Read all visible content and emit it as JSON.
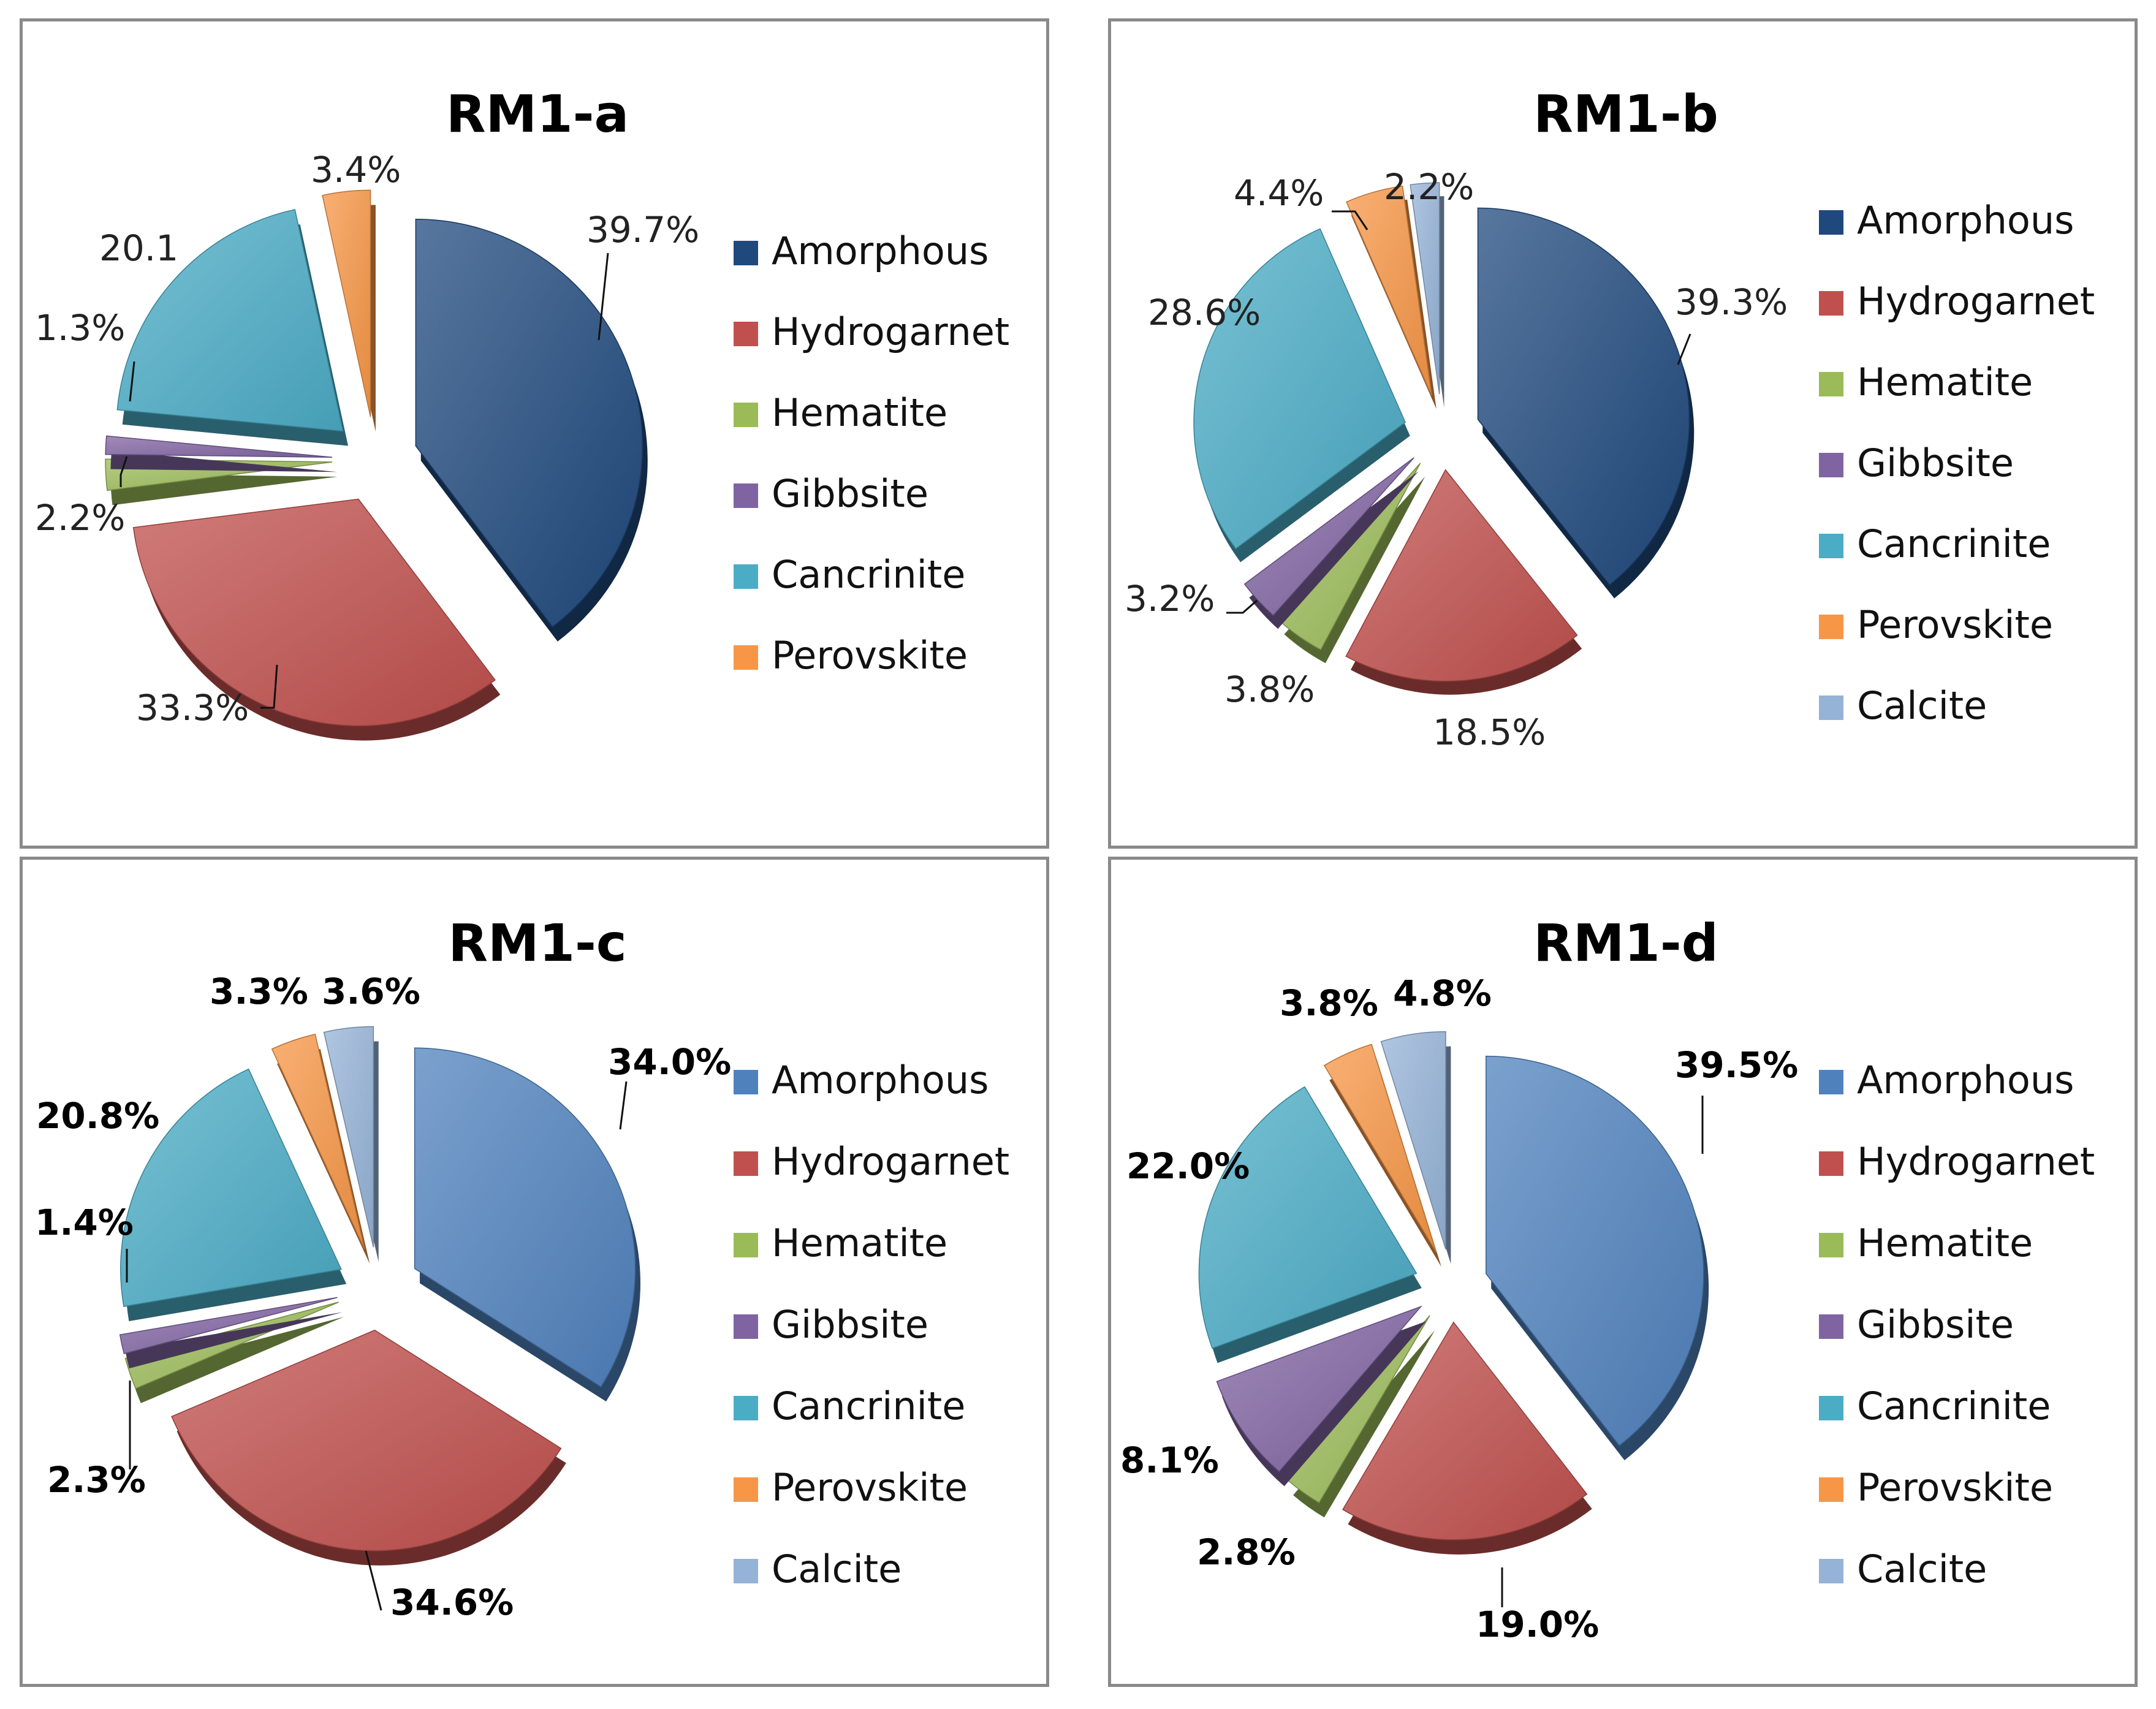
{
  "chart_data": [
    {
      "type": "pie",
      "style": "exploded-3d",
      "title": "RM1-a",
      "categories": [
        "Amorphous",
        "Hydrogarnet",
        "Hematite",
        "Gibbsite",
        "Cancrinite",
        "Perovskite"
      ],
      "values": [
        39.7,
        33.3,
        2.2,
        1.3,
        20.1,
        3.4
      ],
      "labels": [
        "39.7%",
        "33.3%",
        "2.2%",
        "1.3%",
        "20.1",
        "3.4%"
      ],
      "label_weight": "normal",
      "legend_position": "right"
    },
    {
      "type": "pie",
      "style": "exploded-3d",
      "title": "RM1-b",
      "categories": [
        "Amorphous",
        "Hydrogarnet",
        "Hematite",
        "Gibbsite",
        "Cancrinite",
        "Perovskite",
        "Calcite"
      ],
      "values": [
        39.3,
        18.5,
        3.8,
        3.2,
        28.6,
        4.4,
        2.2
      ],
      "labels": [
        "39.3%",
        "18.5%",
        "3.8%",
        "3.2%",
        "28.6%",
        "4.4%",
        "2.2%"
      ],
      "label_weight": "normal",
      "legend_position": "right"
    },
    {
      "type": "pie",
      "style": "exploded-3d",
      "title": "RM1-c",
      "categories": [
        "Amorphous",
        "Hydrogarnet",
        "Hematite",
        "Gibbsite",
        "Cancrinite",
        "Perovskite",
        "Calcite"
      ],
      "values": [
        34.0,
        34.6,
        2.3,
        1.4,
        20.8,
        3.3,
        3.6
      ],
      "labels": [
        "34.0%",
        "34.6%",
        "2.3%",
        "1.4%",
        "20.8%",
        "3.3%",
        "3.6%"
      ],
      "label_weight": "bold",
      "legend_position": "right"
    },
    {
      "type": "pie",
      "style": "exploded-3d",
      "title": "RM1-d",
      "categories": [
        "Amorphous",
        "Hydrogarnet",
        "Hematite",
        "Gibbsite",
        "Cancrinite",
        "Perovskite",
        "Calcite"
      ],
      "values": [
        39.5,
        19.0,
        2.8,
        8.1,
        22.0,
        3.8,
        4.8
      ],
      "labels": [
        "39.5%",
        "19.0%",
        "2.8%",
        "8.1%",
        "22.0%",
        "3.8%",
        "4.8%"
      ],
      "label_weight": "bold",
      "legend_position": "right"
    }
  ],
  "palettes": {
    "dark": {
      "Amorphous": "#1f497d",
      "Hydrogarnet": "#c0504d",
      "Hematite": "#9bbb59",
      "Gibbsite": "#8064a2",
      "Cancrinite": "#4bacc6",
      "Perovskite": "#f79646",
      "Calcite": "#95b3d7"
    },
    "light": {
      "Amorphous": "#4f81bd",
      "Hydrogarnet": "#c0504d",
      "Hematite": "#9bbb59",
      "Gibbsite": "#8064a2",
      "Cancrinite": "#4bacc6",
      "Perovskite": "#f79646",
      "Calcite": "#95b3d7"
    },
    "panel_palette": [
      "dark",
      "dark",
      "light",
      "light"
    ]
  }
}
